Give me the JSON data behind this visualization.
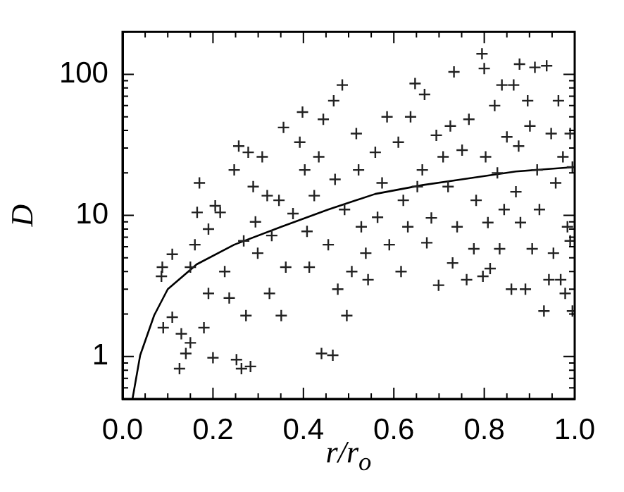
{
  "chart_data": {
    "type": "scatter",
    "xlabel": "r/r$_{o}$",
    "ylabel": "D",
    "log": "y",
    "marker": "cross",
    "grid": false,
    "legend": false,
    "xlim": [
      0,
      1
    ],
    "ylim": [
      0.5,
      200
    ],
    "xticks": [
      {
        "value": 0,
        "label": "0.0"
      },
      {
        "value": 0.05,
        "label": null
      },
      {
        "value": 0.1,
        "label": null
      },
      {
        "value": 0.15,
        "label": null
      },
      0.2,
      {
        "value": 0.25,
        "label": null
      },
      {
        "value": 0.3,
        "label": null
      },
      {
        "value": 0.35,
        "label": null
      },
      0.4,
      {
        "value": 0.45,
        "label": null
      },
      {
        "value": 0.5,
        "label": null
      },
      {
        "value": 0.55,
        "label": null
      },
      0.6,
      {
        "value": 0.65,
        "label": null
      },
      {
        "value": 0.7,
        "label": null
      },
      {
        "value": 0.75,
        "label": null
      },
      0.8,
      {
        "value": 0.85,
        "label": null
      },
      {
        "value": 0.9,
        "label": null
      },
      {
        "value": 0.95,
        "label": null
      },
      {
        "value": 1,
        "label": "1.0"
      }
    ],
    "yticks": [
      {
        "value": 0.5,
        "label": null
      },
      {
        "value": 0.6,
        "label": null
      },
      {
        "value": 0.7,
        "label": null
      },
      {
        "value": 0.8,
        "label": null
      },
      {
        "value": 0.9,
        "label": null
      },
      1,
      {
        "value": 2,
        "label": null
      },
      {
        "value": 3,
        "label": null
      },
      {
        "value": 4,
        "label": null
      },
      {
        "value": 5,
        "label": null
      },
      {
        "value": 6,
        "label": null
      },
      {
        "value": 7,
        "label": null
      },
      {
        "value": 8,
        "label": null
      },
      {
        "value": 9,
        "label": null
      },
      10,
      {
        "value": 20,
        "label": null
      },
      {
        "value": 30,
        "label": null
      },
      {
        "value": 40,
        "label": null
      },
      {
        "value": 50,
        "label": null
      },
      {
        "value": 60,
        "label": null
      },
      {
        "value": 70,
        "label": null
      },
      {
        "value": 80,
        "label": null
      },
      {
        "value": 90,
        "label": null
      },
      100,
      {
        "value": 200,
        "label": null
      }
    ],
    "series": [
      {
        "color": "#222222",
        "x": [
          0.088,
          0.086,
          0.11,
          0.09,
          0.11,
          0.126,
          0.13,
          0.14,
          0.15,
          0.15,
          0.17,
          0.165,
          0.16,
          0.18,
          0.2,
          0.19,
          0.205,
          0.19,
          0.216,
          0.226,
          0.236,
          0.247,
          0.252,
          0.257,
          0.263,
          0.283,
          0.268,
          0.273,
          0.278,
          0.289,
          0.294,
          0.299,
          0.309,
          0.32,
          0.325,
          0.33,
          0.346,
          0.351,
          0.356,
          0.361,
          0.377,
          0.392,
          0.398,
          0.403,
          0.408,
          0.413,
          0.424,
          0.434,
          0.44,
          0.444,
          0.455,
          0.465,
          0.467,
          0.47,
          0.476,
          0.486,
          0.491,
          0.496,
          0.507,
          0.517,
          0.522,
          0.528,
          0.538,
          0.543,
          0.559,
          0.564,
          0.574,
          0.585,
          0.59,
          0.61,
          0.616,
          0.621,
          0.631,
          0.637,
          0.647,
          0.652,
          0.663,
          0.668,
          0.673,
          0.683,
          0.694,
          0.699,
          0.709,
          0.72,
          0.725,
          0.73,
          0.733,
          0.74,
          0.751,
          0.761,
          0.766,
          0.777,
          0.782,
          0.795,
          0.8,
          0.803,
          0.797,
          0.808,
          0.813,
          0.823,
          0.829,
          0.834,
          0.839,
          0.844,
          0.85,
          0.86,
          0.865,
          0.87,
          0.876,
          0.878,
          0.88,
          0.891,
          0.896,
          0.901,
          0.906,
          0.912,
          0.917,
          0.922,
          0.932,
          0.938,
          0.943,
          0.948,
          0.953,
          0.958,
          0.964,
          0.969,
          0.974,
          0.979,
          0.984,
          0.99,
          0.995,
          0.99,
          0.995
        ],
        "values": [
          4.3,
          3.7,
          5.3,
          1.6,
          1.9,
          0.82,
          1.45,
          1.05,
          1.25,
          4.3,
          17,
          10.5,
          6.2,
          1.6,
          0.98,
          8,
          11.7,
          2.8,
          10.5,
          4,
          2.6,
          21,
          0.95,
          31,
          0.82,
          0.85,
          6.6,
          1.95,
          28,
          16,
          9,
          5.4,
          26,
          13.8,
          2.8,
          7.2,
          12.8,
          1.95,
          42,
          4.3,
          10.3,
          33,
          54,
          21,
          7.7,
          4.3,
          13.8,
          26,
          1.05,
          48,
          6.2,
          1.02,
          65,
          18,
          3,
          84,
          11,
          1.95,
          4,
          38,
          21,
          8.3,
          5.4,
          3.5,
          28,
          9.7,
          17,
          50,
          6.2,
          33,
          4,
          12.8,
          8.3,
          50,
          86,
          16,
          21,
          72,
          6.4,
          9.6,
          37,
          3.2,
          26,
          16,
          43,
          4.6,
          104,
          8.3,
          29,
          3.5,
          48,
          5.8,
          12.8,
          140,
          110,
          26,
          3.7,
          8.9,
          4.2,
          60,
          20,
          5.8,
          84,
          11,
          36,
          3,
          84,
          14.7,
          31,
          118,
          8.9,
          3,
          65,
          43,
          5.8,
          112,
          21,
          11,
          2.1,
          115,
          3.5,
          38,
          5.4,
          17,
          65,
          3.5,
          26,
          2.8,
          8.3,
          38,
          22,
          6.6,
          2.1
        ]
      },
      {
        "type": "line",
        "color": "#000000",
        "marker": "none",
        "x": [
          0.022,
          0.039,
          0.07,
          0.1,
          0.164,
          0.247,
          0.351,
          0.455,
          0.559,
          0.663,
          0.766,
          0.87,
          1
        ],
        "values": [
          0.5,
          1.02,
          1.96,
          3,
          4.5,
          6.2,
          8.3,
          11,
          14.2,
          16.4,
          18.3,
          20.5,
          22
        ]
      }
    ]
  }
}
